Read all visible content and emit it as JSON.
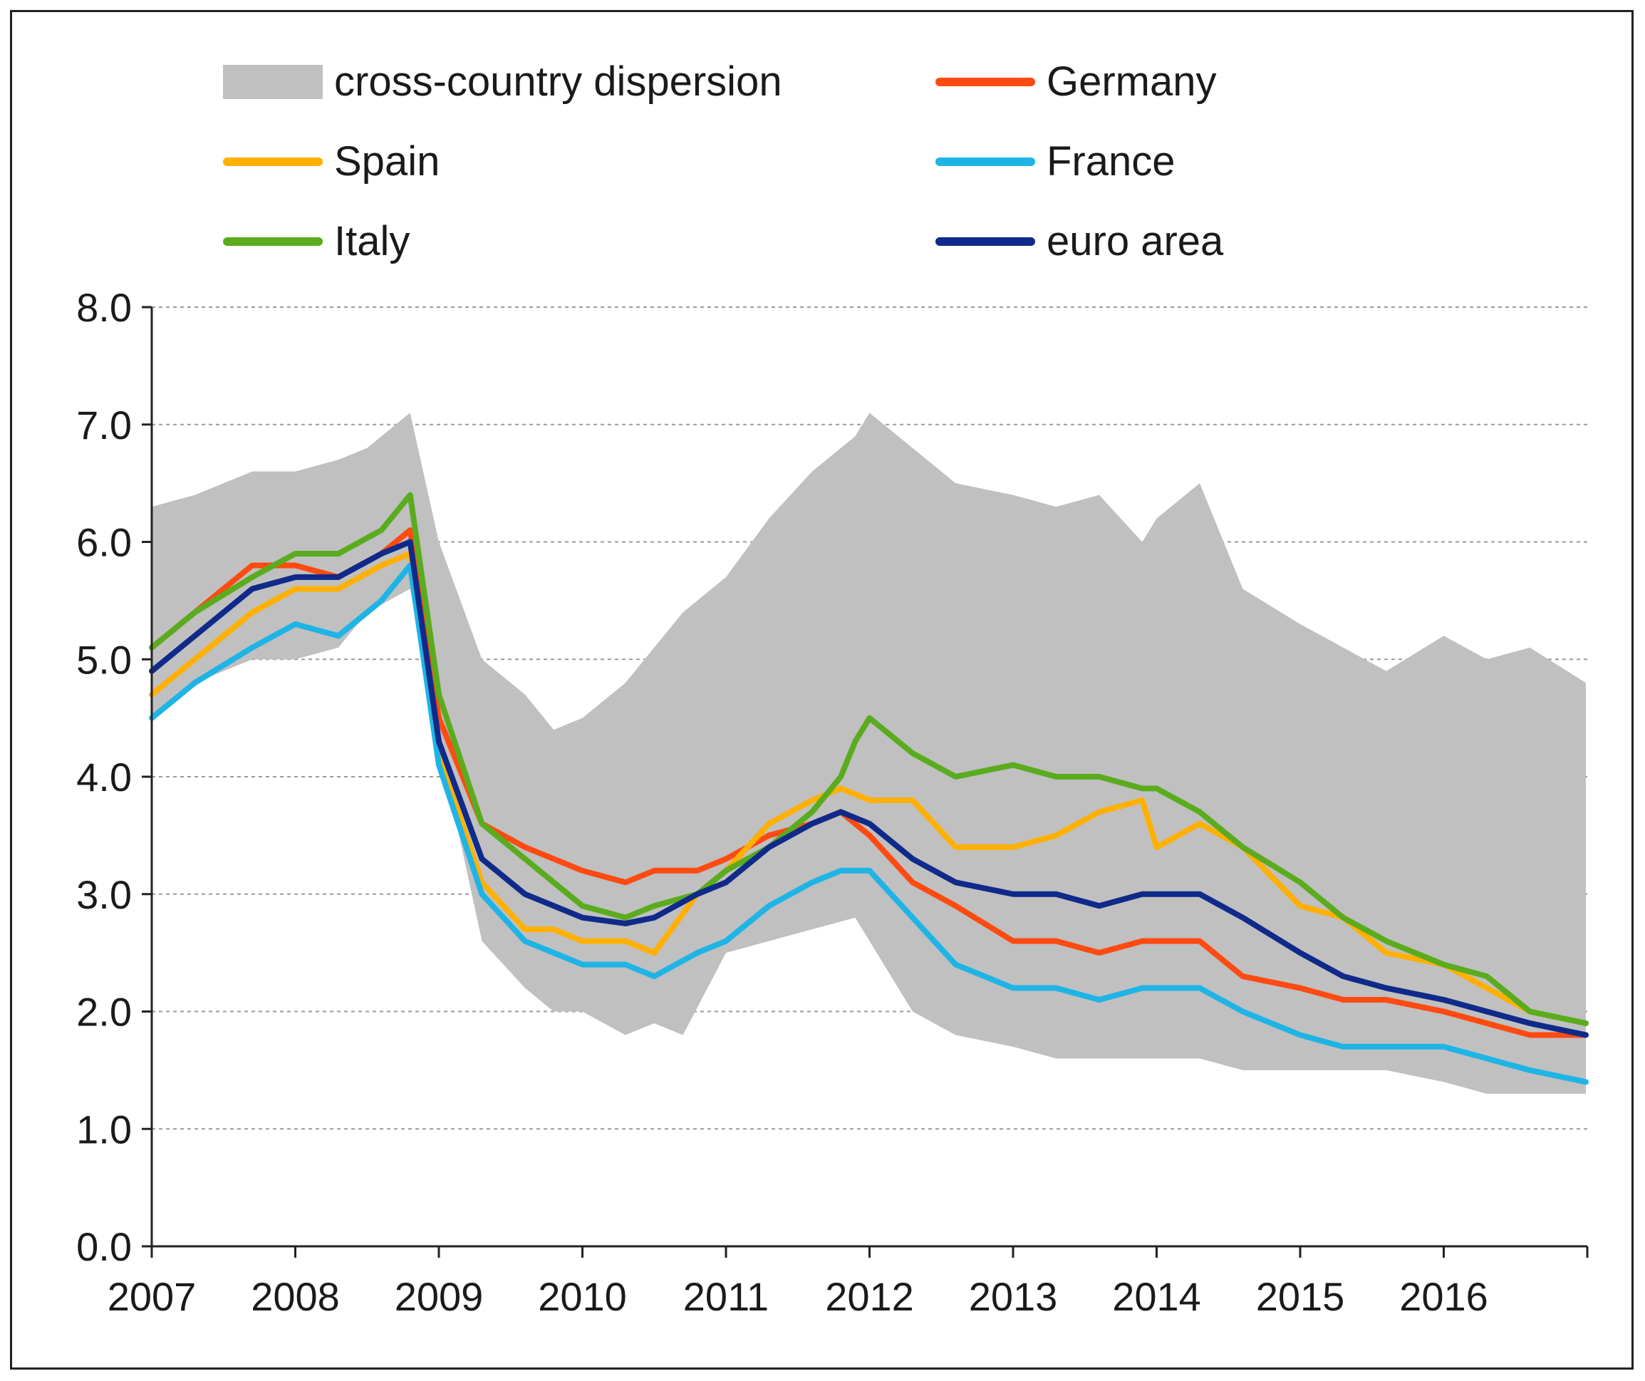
{
  "chart_data": {
    "type": "area",
    "xlabel": "",
    "ylabel": "",
    "ylim": [
      0,
      8
    ],
    "xlim": [
      2007,
      2017
    ],
    "y_ticks": [
      "0.0",
      "1.0",
      "2.0",
      "3.0",
      "4.0",
      "5.0",
      "6.0",
      "7.0",
      "8.0"
    ],
    "x_ticks": [
      "2007",
      "2008",
      "2009",
      "2010",
      "2011",
      "2012",
      "2013",
      "2014",
      "2015",
      "2016"
    ],
    "grid": "horizontal dashed",
    "legend_position": "top",
    "band": {
      "name": "cross-country dispersion",
      "color": "#c0c0c0",
      "x": [
        2007.0,
        2007.3,
        2007.7,
        2008.0,
        2008.3,
        2008.5,
        2008.8,
        2009.0,
        2009.3,
        2009.6,
        2009.8,
        2010.0,
        2010.3,
        2010.5,
        2010.7,
        2011.0,
        2011.3,
        2011.6,
        2011.9,
        2012.0,
        2012.3,
        2012.6,
        2013.0,
        2013.3,
        2013.6,
        2013.9,
        2014.0,
        2014.3,
        2014.6,
        2015.0,
        2015.3,
        2015.6,
        2016.0,
        2016.3,
        2016.6,
        2016.99
      ],
      "upper": [
        6.3,
        6.4,
        6.6,
        6.6,
        6.7,
        6.8,
        7.1,
        6.0,
        5.0,
        4.7,
        4.4,
        4.5,
        4.8,
        5.1,
        5.4,
        5.7,
        6.2,
        6.6,
        6.9,
        7.1,
        6.8,
        6.5,
        6.4,
        6.3,
        6.4,
        6.0,
        6.2,
        6.5,
        5.6,
        5.3,
        5.1,
        4.9,
        5.2,
        5.0,
        5.1,
        4.8
      ],
      "lower": [
        4.5,
        4.8,
        5.0,
        5.0,
        5.1,
        5.4,
        5.6,
        4.3,
        2.6,
        2.2,
        2.0,
        2.0,
        1.8,
        1.9,
        1.8,
        2.5,
        2.6,
        2.7,
        2.8,
        2.6,
        2.0,
        1.8,
        1.7,
        1.6,
        1.6,
        1.6,
        1.6,
        1.6,
        1.5,
        1.5,
        1.5,
        1.5,
        1.4,
        1.3,
        1.3,
        1.3
      ]
    },
    "series": [
      {
        "name": "Germany",
        "color": "#ff4b12",
        "x": [
          2007.0,
          2007.3,
          2007.7,
          2008.0,
          2008.3,
          2008.6,
          2008.8,
          2009.0,
          2009.3,
          2009.6,
          2009.8,
          2010.0,
          2010.3,
          2010.5,
          2010.8,
          2011.0,
          2011.3,
          2011.6,
          2011.8,
          2012.0,
          2012.3,
          2012.6,
          2013.0,
          2013.3,
          2013.6,
          2013.9,
          2014.0,
          2014.3,
          2014.6,
          2015.0,
          2015.3,
          2015.6,
          2016.0,
          2016.3,
          2016.6,
          2016.99
        ],
        "y": [
          5.1,
          5.4,
          5.8,
          5.8,
          5.7,
          5.9,
          6.1,
          4.5,
          3.6,
          3.4,
          3.3,
          3.2,
          3.1,
          3.2,
          3.2,
          3.3,
          3.5,
          3.6,
          3.7,
          3.5,
          3.1,
          2.9,
          2.6,
          2.6,
          2.5,
          2.6,
          2.6,
          2.6,
          2.3,
          2.2,
          2.1,
          2.1,
          2.0,
          1.9,
          1.8,
          1.8
        ]
      },
      {
        "name": "Spain",
        "color": "#ffb000",
        "x": [
          2007.0,
          2007.3,
          2007.7,
          2008.0,
          2008.3,
          2008.6,
          2008.8,
          2009.0,
          2009.3,
          2009.6,
          2009.8,
          2010.0,
          2010.3,
          2010.5,
          2010.8,
          2011.0,
          2011.3,
          2011.6,
          2011.8,
          2012.0,
          2012.3,
          2012.6,
          2013.0,
          2013.3,
          2013.6,
          2013.9,
          2014.0,
          2014.3,
          2014.6,
          2015.0,
          2015.3,
          2015.6,
          2016.0,
          2016.3,
          2016.6,
          2016.99
        ],
        "y": [
          4.7,
          5.0,
          5.4,
          5.6,
          5.6,
          5.8,
          5.9,
          4.2,
          3.1,
          2.7,
          2.7,
          2.6,
          2.6,
          2.5,
          3.0,
          3.2,
          3.6,
          3.8,
          3.9,
          3.8,
          3.8,
          3.4,
          3.4,
          3.5,
          3.7,
          3.8,
          3.4,
          3.6,
          3.4,
          2.9,
          2.8,
          2.5,
          2.4,
          2.2,
          2.0,
          1.9
        ]
      },
      {
        "name": "Italy",
        "color": "#5aac1e",
        "x": [
          2007.0,
          2007.3,
          2007.7,
          2008.0,
          2008.3,
          2008.6,
          2008.8,
          2009.0,
          2009.3,
          2009.6,
          2009.8,
          2010.0,
          2010.3,
          2010.5,
          2010.8,
          2011.0,
          2011.3,
          2011.6,
          2011.8,
          2011.9,
          2012.0,
          2012.3,
          2012.6,
          2013.0,
          2013.3,
          2013.6,
          2013.9,
          2014.0,
          2014.3,
          2014.6,
          2015.0,
          2015.3,
          2015.6,
          2016.0,
          2016.3,
          2016.6,
          2016.99
        ],
        "y": [
          5.1,
          5.4,
          5.7,
          5.9,
          5.9,
          6.1,
          6.4,
          4.7,
          3.6,
          3.3,
          3.1,
          2.9,
          2.8,
          2.9,
          3.0,
          3.2,
          3.4,
          3.7,
          4.0,
          4.3,
          4.5,
          4.2,
          4.0,
          4.1,
          4.0,
          4.0,
          3.9,
          3.9,
          3.7,
          3.4,
          3.1,
          2.8,
          2.6,
          2.4,
          2.3,
          2.0,
          1.9
        ]
      },
      {
        "name": "France",
        "color": "#1fb4e6",
        "x": [
          2007.0,
          2007.3,
          2007.7,
          2008.0,
          2008.3,
          2008.6,
          2008.8,
          2009.0,
          2009.3,
          2009.6,
          2009.8,
          2010.0,
          2010.3,
          2010.5,
          2010.8,
          2011.0,
          2011.3,
          2011.6,
          2011.8,
          2012.0,
          2012.3,
          2012.6,
          2013.0,
          2013.3,
          2013.6,
          2013.9,
          2014.0,
          2014.3,
          2014.6,
          2015.0,
          2015.3,
          2015.6,
          2016.0,
          2016.3,
          2016.6,
          2016.99
        ],
        "y": [
          4.5,
          4.8,
          5.1,
          5.3,
          5.2,
          5.5,
          5.8,
          4.1,
          3.0,
          2.6,
          2.5,
          2.4,
          2.4,
          2.3,
          2.5,
          2.6,
          2.9,
          3.1,
          3.2,
          3.2,
          2.8,
          2.4,
          2.2,
          2.2,
          2.1,
          2.2,
          2.2,
          2.2,
          2.0,
          1.8,
          1.7,
          1.7,
          1.7,
          1.6,
          1.5,
          1.4
        ]
      },
      {
        "name": "euro area",
        "color": "#0f2a8a",
        "x": [
          2007.0,
          2007.3,
          2007.7,
          2008.0,
          2008.3,
          2008.6,
          2008.8,
          2009.0,
          2009.3,
          2009.6,
          2009.8,
          2010.0,
          2010.3,
          2010.5,
          2010.8,
          2011.0,
          2011.3,
          2011.6,
          2011.8,
          2012.0,
          2012.3,
          2012.6,
          2013.0,
          2013.3,
          2013.6,
          2013.9,
          2014.0,
          2014.3,
          2014.6,
          2015.0,
          2015.3,
          2015.6,
          2016.0,
          2016.3,
          2016.6,
          2016.99
        ],
        "y": [
          4.9,
          5.2,
          5.6,
          5.7,
          5.7,
          5.9,
          6.0,
          4.3,
          3.3,
          3.0,
          2.9,
          2.8,
          2.75,
          2.8,
          3.0,
          3.1,
          3.4,
          3.6,
          3.7,
          3.6,
          3.3,
          3.1,
          3.0,
          3.0,
          2.9,
          3.0,
          3.0,
          3.0,
          2.8,
          2.5,
          2.3,
          2.2,
          2.1,
          2.0,
          1.9,
          1.8
        ]
      }
    ]
  }
}
